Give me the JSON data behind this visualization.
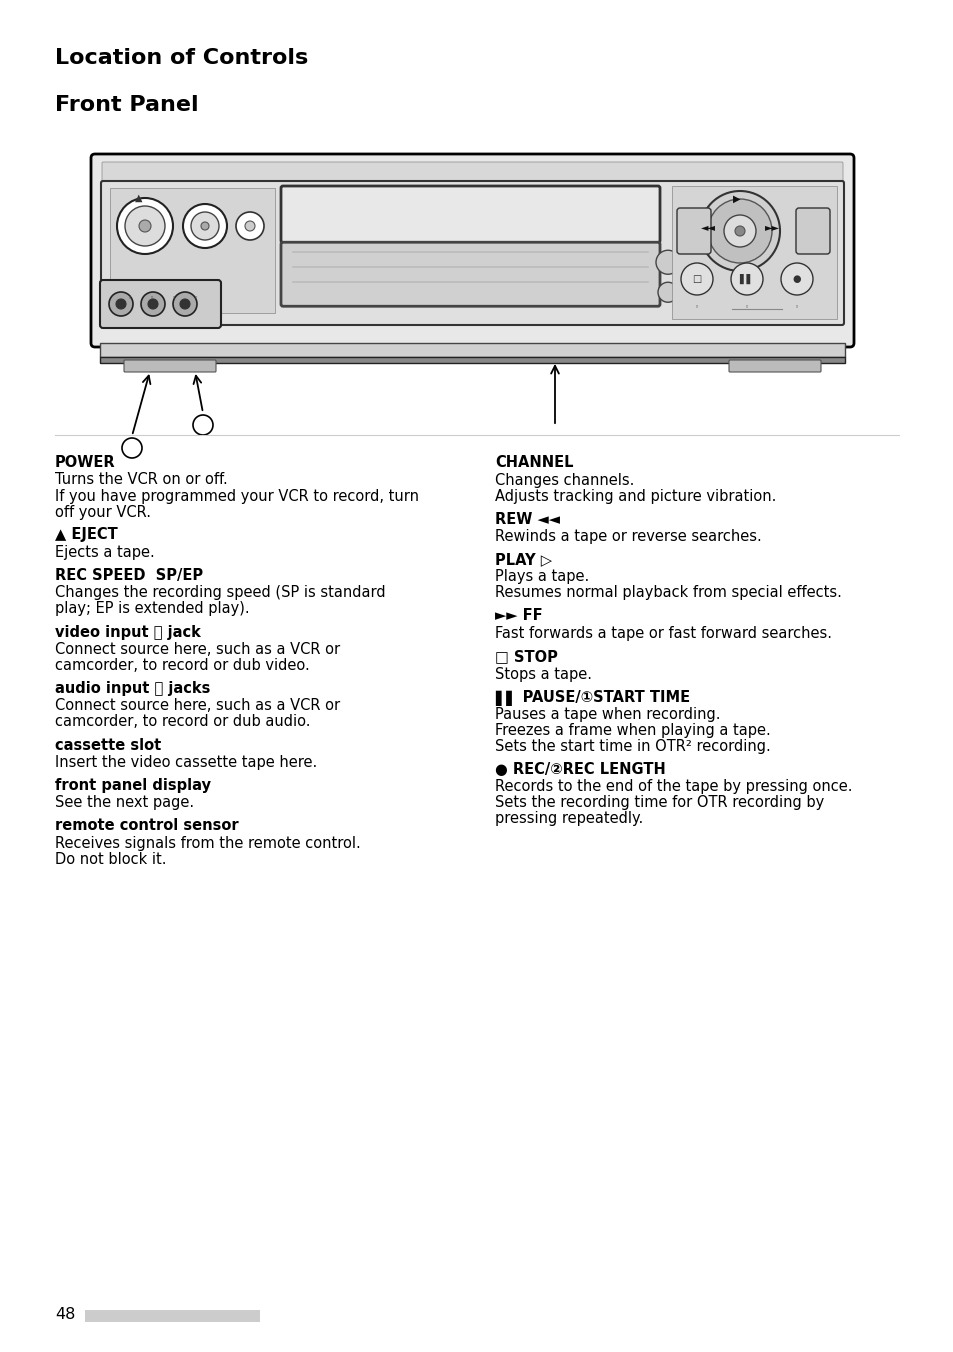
{
  "title1": "Location of Controls",
  "title2": "Front Panel",
  "bg_color": "#ffffff",
  "page_number": "48",
  "left_entries": [
    {
      "label": "POWER",
      "label_allcaps": true,
      "body": "Turns the VCR on or off.\nIf you have programmed your VCR to record, turn\noff your VCR."
    },
    {
      "label": "▲ EJECT",
      "label_allcaps": true,
      "body": "Ejects a tape."
    },
    {
      "label": "REC SPEED  SP/EP",
      "label_allcaps": true,
      "body": "Changes the recording speed (SP is standard\nplay; EP is extended play)."
    },
    {
      "label": "video input Ⓒ jack",
      "label_allcaps": false,
      "body": "Connect source here, such as a VCR or\ncamcorder, to record or dub video."
    },
    {
      "label": "audio input Ⓒ jacks",
      "label_allcaps": false,
      "body": "Connect source here, such as a VCR or\ncamcorder, to record or dub audio."
    },
    {
      "label": "cassette slot",
      "label_allcaps": false,
      "body": "Insert the video cassette tape here."
    },
    {
      "label": "front panel display",
      "label_allcaps": false,
      "body": "See the next page."
    },
    {
      "label": "remote control sensor",
      "label_allcaps": false,
      "body": "Receives signals from the remote control.\nDo not block it."
    }
  ],
  "right_entries": [
    {
      "label": "CHANNEL",
      "label_allcaps": true,
      "body": "Changes channels.\nAdjusts tracking and picture vibration."
    },
    {
      "label": "REW ◄◄",
      "label_allcaps": true,
      "body": "Rewinds a tape or reverse searches."
    },
    {
      "label": "PLAY ▷",
      "label_allcaps": true,
      "body": "Plays a tape.\nResumes normal playback from special effects."
    },
    {
      "label": "►► FF",
      "label_allcaps": true,
      "body": "Fast forwards a tape or fast forward searches."
    },
    {
      "label": "□ STOP",
      "label_allcaps": true,
      "body": "Stops a tape."
    },
    {
      "label": "▌▌ PAUSE/①START TIME",
      "label_allcaps": true,
      "body": "Pauses a tape when recording.\nFreezes a frame when playing a tape.\nSets the start time in OTR² recording."
    },
    {
      "label": "● REC/②REC LENGTH",
      "label_allcaps": true,
      "body": "Records to the end of the tape by pressing once.\nSets the recording time for OTR recording by\npressing repeatedly."
    }
  ]
}
